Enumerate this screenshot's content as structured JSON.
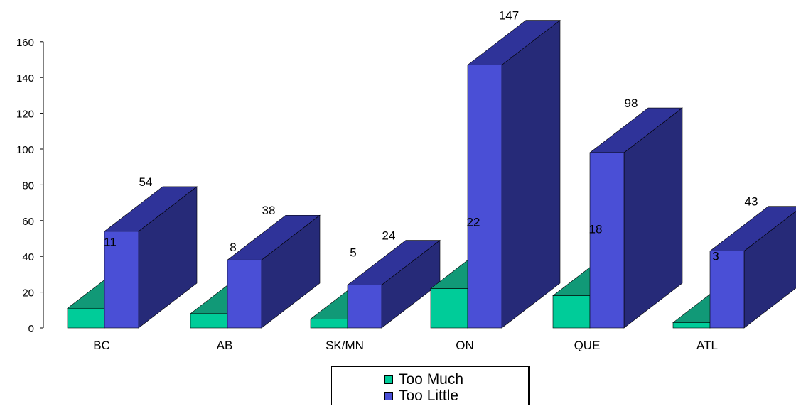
{
  "chart_data": {
    "type": "bar",
    "style": "3d-clustered",
    "categories": [
      "BC",
      "AB",
      "SK/MN",
      "ON",
      "QUE",
      "ATL"
    ],
    "series": [
      {
        "name": "Too Much",
        "values": [
          11,
          8,
          5,
          22,
          18,
          3
        ],
        "color": "#00cc99",
        "top_color": "#119977",
        "side_color": "#0a6b52"
      },
      {
        "name": "Too Little",
        "values": [
          54,
          38,
          24,
          147,
          98,
          43
        ],
        "color": "#4a4fd6",
        "top_color": "#2f3399",
        "side_color": "#262a78"
      }
    ],
    "ylim": [
      0,
      160
    ],
    "yticks": [
      0,
      20,
      40,
      60,
      80,
      100,
      120,
      140,
      160
    ],
    "data_labels": [
      "11",
      "8",
      "5",
      "22",
      "18",
      "3",
      "54",
      "38",
      "24",
      "147",
      "98",
      "43"
    ],
    "grid": false,
    "legend": "bottom-center"
  }
}
